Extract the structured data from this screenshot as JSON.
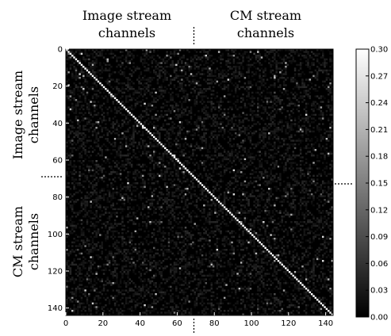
{
  "chart_data": {
    "type": "heatmap",
    "size": 144,
    "xlim": [
      0,
      144
    ],
    "ylim": [
      0,
      144
    ],
    "x_ticks": [
      0,
      20,
      40,
      60,
      80,
      100,
      120,
      140
    ],
    "y_ticks": [
      0,
      20,
      40,
      60,
      80,
      100,
      120,
      140
    ],
    "split_index": 69,
    "diagonal_value": 0.3,
    "colormap": "gray",
    "colorbar": {
      "min": 0.0,
      "max": 0.3,
      "ticks": [
        "0.00",
        "0.03",
        "0.06",
        "0.09",
        "0.12",
        "0.15",
        "0.18",
        "0.21",
        "0.24",
        "0.27",
        "0.30"
      ]
    },
    "top_labels": [
      [
        "Image stream",
        "channels"
      ],
      [
        "CM stream",
        "channels"
      ]
    ],
    "left_labels": [
      [
        "Image stream",
        "channels"
      ],
      [
        "CM stream",
        "channels"
      ]
    ],
    "background_colors": {
      "low": "#000000",
      "high": "#ffffff"
    }
  }
}
